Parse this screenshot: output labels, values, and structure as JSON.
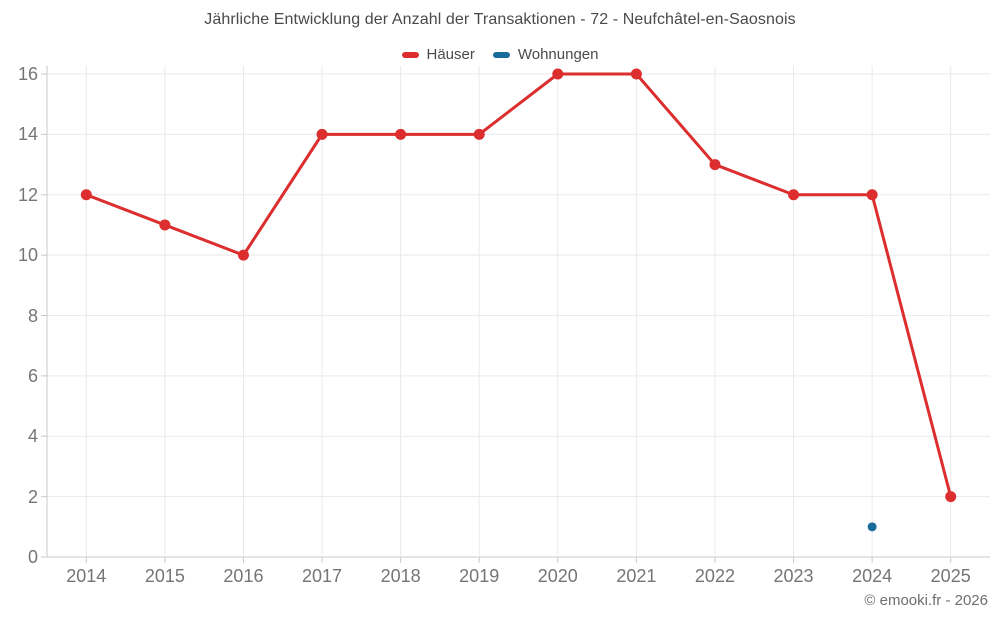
{
  "header": {
    "title": "Jährliche Entwicklung der Anzahl der Transaktionen - 72 - Neufchâtel-en-Saosnois"
  },
  "legend": {
    "items": [
      {
        "label": "Häuser",
        "color": "#dc2e2e"
      },
      {
        "label": "Wohnungen",
        "color": "#1a6d9b"
      }
    ]
  },
  "footer": {
    "copyright": "© emooki.fr - 2026"
  },
  "colors": {
    "haeuser": "#dc2e2e",
    "wohnungen": "#1a6d9b",
    "grid": "#eaeaea",
    "axis": "#c9c9c9",
    "axis_label": "#757575",
    "title_text": "#4a4a4a"
  },
  "chart_data": {
    "type": "line",
    "title": "Jährliche Entwicklung der Anzahl der Transaktionen - 72 - Neufchâtel-en-Saosnois",
    "categories": [
      "2014",
      "2015",
      "2016",
      "2017",
      "2018",
      "2019",
      "2020",
      "2021",
      "2022",
      "2023",
      "2024",
      "2025"
    ],
    "series": [
      {
        "name": "Häuser",
        "color": "#dc2e2e",
        "line_width": 3,
        "marker_radius": 5.5,
        "points": [
          [
            "2014",
            12
          ],
          [
            "2015",
            11
          ],
          [
            "2016",
            10
          ],
          [
            "2017",
            14
          ],
          [
            "2018",
            14
          ],
          [
            "2019",
            14
          ],
          [
            "2020",
            16
          ],
          [
            "2021",
            16
          ],
          [
            "2022",
            13
          ],
          [
            "2023",
            12
          ],
          [
            "2024",
            12
          ],
          [
            "2025",
            2
          ]
        ]
      },
      {
        "name": "Wohnungen",
        "color": "#1a6d9b",
        "line_width": 3,
        "marker_radius": 4.5,
        "points": [
          [
            "2024",
            1
          ]
        ]
      }
    ],
    "xlabel": "",
    "ylabel": "",
    "ylim": [
      0,
      16
    ],
    "yticks": [
      0,
      2,
      4,
      6,
      8,
      10,
      12,
      14,
      16
    ],
    "grid": true,
    "legend_position": "top"
  }
}
